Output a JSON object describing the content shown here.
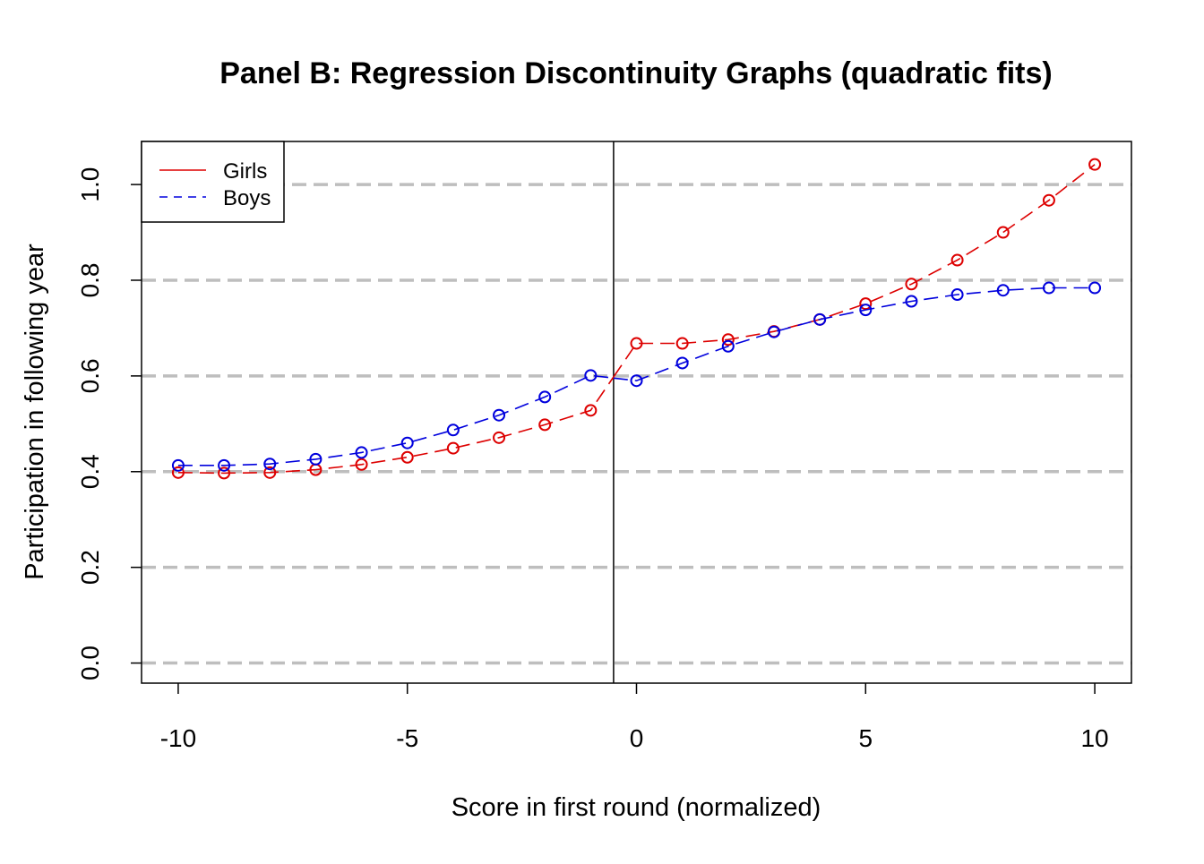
{
  "chart_data": {
    "type": "line",
    "title": "Panel B: Regression Discontinuity Graphs (quadratic fits)",
    "xlabel": "Score in first round (normalized)",
    "ylabel": "Participation in following year",
    "xlim": [
      -10.8,
      10.8
    ],
    "ylim": [
      -0.042,
      1.09
    ],
    "x_ticks": [
      -10,
      -5,
      0,
      5,
      10
    ],
    "x_tick_labels": [
      "-10",
      "-5",
      "0",
      "5",
      "10"
    ],
    "y_ticks": [
      0.0,
      0.2,
      0.4,
      0.6,
      0.8,
      1.0
    ],
    "y_tick_labels": [
      "0.0",
      "0.2",
      "0.4",
      "0.6",
      "0.8",
      "1.0"
    ],
    "grid": "horizontal dashed at y ticks",
    "cutoff_line_x": -0.5,
    "legend_position": "top-left",
    "x": [
      -10,
      -9,
      -8,
      -7,
      -6,
      -5,
      -4,
      -3,
      -2,
      -1,
      0,
      1,
      2,
      3,
      4,
      5,
      6,
      7,
      8,
      9,
      10
    ],
    "series": [
      {
        "name": "Girls",
        "color": "#dd0000",
        "legend_line": "solid",
        "values": [
          0.398,
          0.397,
          0.398,
          0.404,
          0.415,
          0.43,
          0.449,
          0.471,
          0.498,
          0.528,
          0.668,
          0.668,
          0.676,
          0.693,
          0.718,
          0.751,
          0.792,
          0.842,
          0.9,
          0.967,
          1.042
        ]
      },
      {
        "name": "Boys",
        "color": "#0000dd",
        "legend_line": "dashed",
        "values": [
          0.413,
          0.413,
          0.416,
          0.426,
          0.44,
          0.46,
          0.487,
          0.518,
          0.556,
          0.601,
          0.59,
          0.627,
          0.662,
          0.692,
          0.718,
          0.738,
          0.756,
          0.77,
          0.779,
          0.784,
          0.784
        ]
      }
    ]
  }
}
